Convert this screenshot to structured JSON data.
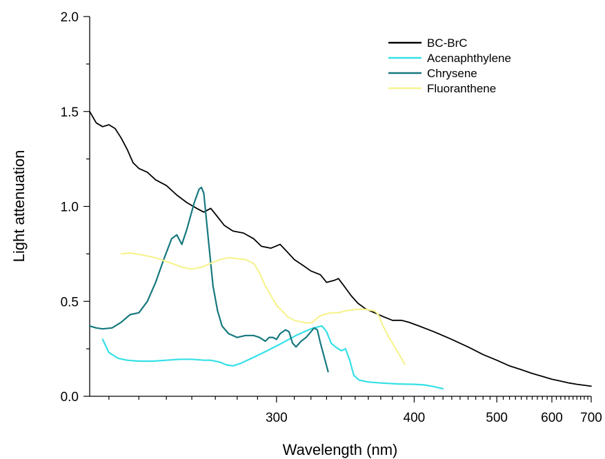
{
  "chart_data": {
    "type": "line",
    "title": "",
    "xlabel": "Wavelength (nm)",
    "ylabel": "Light attenuation",
    "x_scale": "reciprocal",
    "xlim": [
      224,
      700
    ],
    "ylim": [
      0,
      2.0
    ],
    "x_ticks": [
      300,
      400,
      500,
      600,
      700
    ],
    "x_tick_labels": [
      "300",
      "400",
      "500",
      "600",
      "700"
    ],
    "y_ticks": [
      0,
      0.5,
      1.0,
      1.5,
      2.0
    ],
    "y_tick_labels": [
      "0.0",
      "0.5",
      "1.0",
      "1.5",
      "2.0"
    ],
    "grid": false,
    "legend_position": "top-right",
    "series": [
      {
        "name": "BC-BrC",
        "color": "#000000",
        "points": [
          [
            224,
            1.5
          ],
          [
            226,
            1.44
          ],
          [
            228,
            1.42
          ],
          [
            230,
            1.43
          ],
          [
            232,
            1.41
          ],
          [
            234,
            1.36
          ],
          [
            236,
            1.3
          ],
          [
            238,
            1.23
          ],
          [
            240,
            1.2
          ],
          [
            243,
            1.18
          ],
          [
            246,
            1.14
          ],
          [
            250,
            1.11
          ],
          [
            254,
            1.06
          ],
          [
            258,
            1.02
          ],
          [
            262,
            0.99
          ],
          [
            265,
            0.97
          ],
          [
            268,
            0.99
          ],
          [
            270,
            0.96
          ],
          [
            274,
            0.9
          ],
          [
            278,
            0.87
          ],
          [
            283,
            0.86
          ],
          [
            288,
            0.83
          ],
          [
            292,
            0.79
          ],
          [
            297,
            0.78
          ],
          [
            302,
            0.8
          ],
          [
            306,
            0.76
          ],
          [
            310,
            0.72
          ],
          [
            315,
            0.69
          ],
          [
            320,
            0.66
          ],
          [
            326,
            0.64
          ],
          [
            330,
            0.6
          ],
          [
            335,
            0.61
          ],
          [
            338,
            0.62
          ],
          [
            342,
            0.58
          ],
          [
            347,
            0.53
          ],
          [
            352,
            0.49
          ],
          [
            358,
            0.46
          ],
          [
            365,
            0.44
          ],
          [
            372,
            0.42
          ],
          [
            380,
            0.4
          ],
          [
            388,
            0.4
          ],
          [
            395,
            0.39
          ],
          [
            405,
            0.37
          ],
          [
            420,
            0.34
          ],
          [
            440,
            0.3
          ],
          [
            460,
            0.26
          ],
          [
            480,
            0.22
          ],
          [
            500,
            0.19
          ],
          [
            520,
            0.16
          ],
          [
            540,
            0.14
          ],
          [
            560,
            0.12
          ],
          [
            580,
            0.105
          ],
          [
            600,
            0.09
          ],
          [
            620,
            0.08
          ],
          [
            640,
            0.07
          ],
          [
            660,
            0.063
          ],
          [
            680,
            0.058
          ],
          [
            700,
            0.053
          ]
        ]
      },
      {
        "name": "Acenaphthylene",
        "color": "#33e0e6",
        "points": [
          [
            228,
            0.3
          ],
          [
            230,
            0.23
          ],
          [
            233,
            0.2
          ],
          [
            236,
            0.19
          ],
          [
            240,
            0.185
          ],
          [
            245,
            0.185
          ],
          [
            250,
            0.19
          ],
          [
            255,
            0.195
          ],
          [
            260,
            0.195
          ],
          [
            265,
            0.19
          ],
          [
            268,
            0.19
          ],
          [
            272,
            0.18
          ],
          [
            275,
            0.165
          ],
          [
            278,
            0.16
          ],
          [
            282,
            0.175
          ],
          [
            286,
            0.195
          ],
          [
            291,
            0.22
          ],
          [
            296,
            0.245
          ],
          [
            301,
            0.27
          ],
          [
            306,
            0.295
          ],
          [
            311,
            0.32
          ],
          [
            316,
            0.34
          ],
          [
            320,
            0.355
          ],
          [
            324,
            0.365
          ],
          [
            327,
            0.37
          ],
          [
            330,
            0.34
          ],
          [
            333,
            0.28
          ],
          [
            336,
            0.26
          ],
          [
            340,
            0.24
          ],
          [
            343,
            0.25
          ],
          [
            346,
            0.19
          ],
          [
            349,
            0.11
          ],
          [
            353,
            0.085
          ],
          [
            360,
            0.075
          ],
          [
            370,
            0.07
          ],
          [
            385,
            0.065
          ],
          [
            400,
            0.063
          ],
          [
            410,
            0.06
          ],
          [
            418,
            0.053
          ],
          [
            425,
            0.045
          ],
          [
            430,
            0.04
          ]
        ]
      },
      {
        "name": "Chrysene",
        "color": "#15787e",
        "points": [
          [
            224,
            0.37
          ],
          [
            226,
            0.36
          ],
          [
            228,
            0.355
          ],
          [
            231,
            0.36
          ],
          [
            234,
            0.39
          ],
          [
            237,
            0.43
          ],
          [
            240,
            0.44
          ],
          [
            243,
            0.5
          ],
          [
            246,
            0.6
          ],
          [
            249,
            0.72
          ],
          [
            252,
            0.83
          ],
          [
            254,
            0.85
          ],
          [
            256,
            0.8
          ],
          [
            258,
            0.88
          ],
          [
            261,
            1.02
          ],
          [
            263,
            1.09
          ],
          [
            264,
            1.1
          ],
          [
            265,
            1.07
          ],
          [
            267,
            0.82
          ],
          [
            269,
            0.58
          ],
          [
            271,
            0.45
          ],
          [
            273,
            0.37
          ],
          [
            276,
            0.33
          ],
          [
            280,
            0.31
          ],
          [
            284,
            0.32
          ],
          [
            288,
            0.32
          ],
          [
            291,
            0.31
          ],
          [
            294,
            0.29
          ],
          [
            296,
            0.31
          ],
          [
            298,
            0.31
          ],
          [
            300,
            0.3
          ],
          [
            302,
            0.33
          ],
          [
            305,
            0.35
          ],
          [
            307,
            0.34
          ],
          [
            309,
            0.28
          ],
          [
            311,
            0.26
          ],
          [
            314,
            0.29
          ],
          [
            317,
            0.31
          ],
          [
            320,
            0.34
          ],
          [
            322,
            0.36
          ],
          [
            324,
            0.35
          ],
          [
            326,
            0.28
          ],
          [
            328,
            0.22
          ],
          [
            330,
            0.16
          ],
          [
            331,
            0.13
          ]
        ]
      },
      {
        "name": "Fluoranthene",
        "color": "#f6f390",
        "points": [
          [
            234,
            0.75
          ],
          [
            237,
            0.755
          ],
          [
            241,
            0.745
          ],
          [
            246,
            0.73
          ],
          [
            252,
            0.7
          ],
          [
            256,
            0.68
          ],
          [
            260,
            0.67
          ],
          [
            264,
            0.68
          ],
          [
            268,
            0.7
          ],
          [
            272,
            0.72
          ],
          [
            276,
            0.73
          ],
          [
            280,
            0.725
          ],
          [
            284,
            0.72
          ],
          [
            288,
            0.7
          ],
          [
            291,
            0.65
          ],
          [
            294,
            0.58
          ],
          [
            297,
            0.53
          ],
          [
            300,
            0.48
          ],
          [
            303,
            0.45
          ],
          [
            306,
            0.42
          ],
          [
            310,
            0.4
          ],
          [
            315,
            0.39
          ],
          [
            318,
            0.385
          ],
          [
            321,
            0.39
          ],
          [
            325,
            0.42
          ],
          [
            328,
            0.43
          ],
          [
            333,
            0.44
          ],
          [
            338,
            0.44
          ],
          [
            343,
            0.45
          ],
          [
            348,
            0.455
          ],
          [
            355,
            0.46
          ],
          [
            360,
            0.455
          ],
          [
            365,
            0.45
          ],
          [
            368,
            0.43
          ],
          [
            372,
            0.37
          ],
          [
            377,
            0.31
          ],
          [
            382,
            0.26
          ],
          [
            387,
            0.21
          ],
          [
            391,
            0.17
          ]
        ]
      }
    ]
  }
}
